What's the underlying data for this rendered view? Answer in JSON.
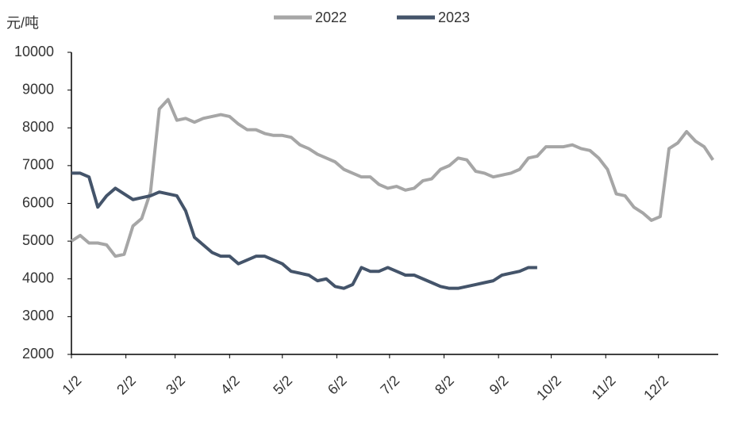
{
  "chart_data": {
    "type": "line",
    "y_label": "元/吨",
    "x": [
      0,
      5,
      10,
      15,
      20,
      25,
      30,
      35,
      40,
      45,
      50,
      55,
      60,
      65,
      70,
      75,
      80,
      85,
      90,
      95,
      100,
      105,
      110,
      115,
      120,
      125,
      130,
      135,
      140,
      145,
      150,
      155,
      160,
      165,
      170,
      175,
      180,
      185,
      190,
      195,
      200,
      205,
      210,
      215,
      220,
      225,
      230,
      235,
      240,
      245,
      250,
      255,
      260,
      265,
      270,
      275,
      280,
      285,
      290,
      295,
      300,
      305,
      310,
      315,
      320,
      325,
      330,
      335,
      340,
      345,
      350,
      355,
      360,
      365
    ],
    "series": [
      {
        "name": "2022",
        "color": "#a6a6a6",
        "values": [
          5000,
          5150,
          4950,
          4950,
          4900,
          4600,
          4650,
          5400,
          5600,
          6300,
          8500,
          8750,
          8200,
          8250,
          8150,
          8250,
          8300,
          8350,
          8300,
          8100,
          7950,
          7950,
          7850,
          7800,
          7800,
          7750,
          7550,
          7450,
          7300,
          7200,
          7100,
          6900,
          6800,
          6700,
          6700,
          6500,
          6400,
          6450,
          6350,
          6400,
          6600,
          6650,
          6900,
          7000,
          7200,
          7150,
          6850,
          6800,
          6700,
          6750,
          6800,
          6900,
          7200,
          7250,
          7500,
          7500,
          7500,
          7550,
          7450,
          7400,
          7200,
          6900,
          6250,
          6200,
          5900,
          5750,
          5550,
          5650,
          7450,
          7600,
          7900,
          7650,
          7500,
          7150
        ]
      },
      {
        "name": "2023",
        "color": "#44546a",
        "values": [
          6800,
          6800,
          6700,
          5900,
          6200,
          6400,
          6250,
          6100,
          6150,
          6200,
          6300,
          6250,
          6200,
          5800,
          5100,
          4900,
          4700,
          4600,
          4600,
          4400,
          4500,
          4600,
          4600,
          4500,
          4400,
          4200,
          4150,
          4100,
          3950,
          4000,
          3800,
          3750,
          3850,
          4300,
          4200,
          4200,
          4300,
          4200,
          4100,
          4100,
          4000,
          3900,
          3800,
          3750,
          3750,
          3800,
          3850,
          3900,
          3950,
          4100,
          4150,
          4200,
          4300,
          4300,
          null,
          null,
          null,
          null,
          null,
          null,
          null,
          null,
          null,
          null,
          null,
          null,
          null,
          null,
          null,
          null,
          null,
          null,
          null,
          null
        ]
      }
    ],
    "xlim": [
      0,
      368
    ],
    "xticks": [
      {
        "value": 0,
        "label": "1/2"
      },
      {
        "value": 31,
        "label": "2/2"
      },
      {
        "value": 59,
        "label": "3/2"
      },
      {
        "value": 90,
        "label": "4/2"
      },
      {
        "value": 120,
        "label": "5/2"
      },
      {
        "value": 151,
        "label": "6/2"
      },
      {
        "value": 181,
        "label": "7/2"
      },
      {
        "value": 212,
        "label": "8/2"
      },
      {
        "value": 243,
        "label": "9/2"
      },
      {
        "value": 273,
        "label": "10/2"
      },
      {
        "value": 304,
        "label": "11/2"
      },
      {
        "value": 334,
        "label": "12/2"
      }
    ],
    "ylim": [
      2000,
      10000
    ],
    "yticks": [
      2000,
      3000,
      4000,
      5000,
      6000,
      7000,
      8000,
      9000,
      10000
    ],
    "grid": false
  }
}
